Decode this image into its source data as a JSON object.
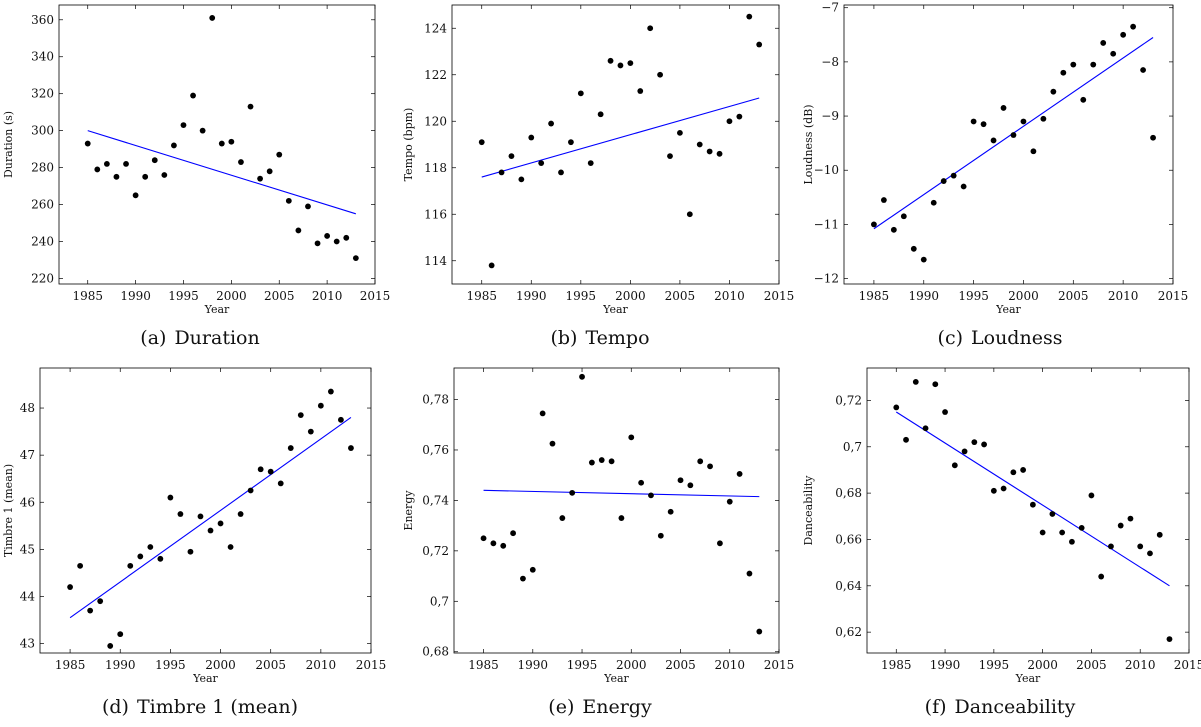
{
  "figure": {
    "panels": [
      {
        "letter": "(a)",
        "caption": "Duration"
      },
      {
        "letter": "(b)",
        "caption": "Tempo"
      },
      {
        "letter": "(c)",
        "caption": "Loudness"
      },
      {
        "letter": "(d)",
        "caption": "Timbre 1 (mean)"
      },
      {
        "letter": "(e)",
        "caption": "Energy"
      },
      {
        "letter": "(f)",
        "caption": "Danceability"
      }
    ]
  },
  "colors": {
    "points": "#000000",
    "trend": "#0000ff",
    "axes": "#000000"
  },
  "chart_data": [
    {
      "type": "scatter",
      "title": "",
      "xlabel": "Year",
      "ylabel": "Duration (s)",
      "xlim": [
        1982,
        2015
      ],
      "ylim": [
        217,
        368
      ],
      "xticks": [
        1985,
        1990,
        1995,
        2000,
        2005,
        2010,
        2015
      ],
      "yticks": [
        220,
        240,
        260,
        280,
        300,
        320,
        340,
        360
      ],
      "ytick_labels": [
        "220",
        "240",
        "260",
        "280",
        "300",
        "320",
        "340",
        "360"
      ],
      "grid": false,
      "x": [
        1985,
        1986,
        1987,
        1988,
        1989,
        1990,
        1991,
        1992,
        1993,
        1994,
        1995,
        1996,
        1997,
        1998,
        1999,
        2000,
        2001,
        2002,
        2003,
        2004,
        2005,
        2006,
        2007,
        2008,
        2009,
        2010,
        2011,
        2012,
        2013
      ],
      "y": [
        293,
        279,
        282,
        275,
        282,
        265,
        275,
        284,
        276,
        292,
        303,
        319,
        300,
        361,
        293,
        294,
        283,
        313,
        274,
        278,
        287,
        262,
        246,
        259,
        239,
        243,
        240,
        242,
        231
      ],
      "trendline": {
        "x": [
          1985,
          2013
        ],
        "y": [
          300,
          255
        ]
      }
    },
    {
      "type": "scatter",
      "title": "",
      "xlabel": "Year",
      "ylabel": "Tempo (bpm)",
      "xlim": [
        1982,
        2015
      ],
      "ylim": [
        113,
        125
      ],
      "xticks": [
        1985,
        1990,
        1995,
        2000,
        2005,
        2010,
        2015
      ],
      "yticks": [
        114,
        116,
        118,
        120,
        122,
        124
      ],
      "ytick_labels": [
        "114",
        "116",
        "118",
        "120",
        "122",
        "124"
      ],
      "grid": false,
      "x": [
        1985,
        1986,
        1987,
        1988,
        1989,
        1990,
        1991,
        1992,
        1993,
        1994,
        1995,
        1996,
        1997,
        1998,
        1999,
        2000,
        2001,
        2002,
        2003,
        2004,
        2005,
        2006,
        2007,
        2008,
        2009,
        2010,
        2011,
        2012,
        2013
      ],
      "y": [
        119.1,
        113.8,
        117.8,
        118.5,
        117.5,
        119.3,
        118.2,
        119.9,
        117.8,
        119.1,
        121.2,
        118.2,
        120.3,
        122.6,
        122.4,
        122.5,
        121.3,
        124.0,
        122.0,
        118.5,
        119.5,
        116.0,
        119.0,
        118.7,
        118.6,
        120.0,
        120.2,
        124.5,
        123.3
      ],
      "trendline": {
        "x": [
          1985,
          2013
        ],
        "y": [
          117.6,
          121.0
        ]
      }
    },
    {
      "type": "scatter",
      "title": "",
      "xlabel": "Year",
      "ylabel": "Loudness (dB)",
      "xlim": [
        1982,
        2015
      ],
      "ylim": [
        -12.1,
        -6.95
      ],
      "xticks": [
        1985,
        1990,
        1995,
        2000,
        2005,
        2010,
        2015
      ],
      "yticks": [
        -12,
        -11,
        -10,
        -9,
        -8,
        -7
      ],
      "ytick_labels": [
        "−12",
        "−11",
        "−10",
        "−9",
        "−8",
        "−7"
      ],
      "grid": false,
      "x": [
        1985,
        1986,
        1987,
        1988,
        1989,
        1990,
        1991,
        1992,
        1993,
        1994,
        1995,
        1996,
        1997,
        1998,
        1999,
        2000,
        2001,
        2002,
        2003,
        2004,
        2005,
        2006,
        2007,
        2008,
        2009,
        2010,
        2011,
        2012,
        2013
      ],
      "y": [
        -11.0,
        -10.55,
        -11.1,
        -10.85,
        -11.45,
        -11.65,
        -10.6,
        -10.2,
        -10.1,
        -10.3,
        -9.1,
        -9.15,
        -9.45,
        -8.85,
        -9.35,
        -9.1,
        -9.65,
        -9.05,
        -8.55,
        -8.2,
        -8.05,
        -8.7,
        -8.05,
        -7.65,
        -7.85,
        -7.5,
        -7.35,
        -8.15,
        -9.4
      ],
      "trendline": {
        "x": [
          1985,
          2013
        ],
        "y": [
          -11.08,
          -7.55
        ]
      }
    },
    {
      "type": "scatter",
      "title": "",
      "xlabel": "Year",
      "ylabel": "Timbre 1 (mean)",
      "xlim": [
        1982,
        2015
      ],
      "ylim": [
        42.8,
        48.85
      ],
      "xticks": [
        1985,
        1990,
        1995,
        2000,
        2005,
        2010,
        2015
      ],
      "yticks": [
        43,
        44,
        45,
        46,
        47,
        48
      ],
      "ytick_labels": [
        "43",
        "44",
        "45",
        "46",
        "47",
        "48"
      ],
      "grid": false,
      "x": [
        1985,
        1986,
        1987,
        1988,
        1989,
        1990,
        1991,
        1992,
        1993,
        1994,
        1995,
        1996,
        1997,
        1998,
        1999,
        2000,
        2001,
        2002,
        2003,
        2004,
        2005,
        2006,
        2007,
        2008,
        2009,
        2010,
        2011,
        2012,
        2013
      ],
      "y": [
        44.2,
        44.65,
        43.7,
        43.9,
        42.95,
        43.2,
        44.65,
        44.85,
        45.05,
        44.8,
        46.1,
        45.75,
        44.95,
        45.7,
        45.4,
        45.55,
        45.05,
        45.75,
        46.25,
        46.7,
        46.65,
        46.4,
        47.15,
        47.85,
        47.5,
        48.05,
        48.35,
        47.75,
        47.15
      ],
      "trendline": {
        "x": [
          1985,
          2013
        ],
        "y": [
          43.55,
          47.8
        ]
      }
    },
    {
      "type": "scatter",
      "title": "",
      "xlabel": "Year",
      "ylabel": "Energy",
      "xlim": [
        1982,
        2015
      ],
      "ylim": [
        0.6795,
        0.7925
      ],
      "xticks": [
        1985,
        1990,
        1995,
        2000,
        2005,
        2010,
        2015
      ],
      "yticks": [
        0.68,
        0.7,
        0.72,
        0.74,
        0.76,
        0.78
      ],
      "ytick_labels": [
        "0,68",
        "0,7",
        "0,72",
        "0,74",
        "0,76",
        "0,78"
      ],
      "grid": false,
      "x": [
        1985,
        1986,
        1987,
        1988,
        1989,
        1990,
        1991,
        1992,
        1993,
        1994,
        1995,
        1996,
        1997,
        1998,
        1999,
        2000,
        2001,
        2002,
        2003,
        2004,
        2005,
        2006,
        2007,
        2008,
        2009,
        2010,
        2011,
        2012,
        2013
      ],
      "y": [
        0.725,
        0.723,
        0.722,
        0.727,
        0.709,
        0.7125,
        0.7745,
        0.7625,
        0.733,
        0.743,
        0.789,
        0.755,
        0.756,
        0.7555,
        0.733,
        0.765,
        0.747,
        0.742,
        0.726,
        0.7355,
        0.748,
        0.746,
        0.7555,
        0.7535,
        0.723,
        0.7395,
        0.7505,
        0.711,
        0.688
      ],
      "trendline": {
        "x": [
          1985,
          2013
        ],
        "y": [
          0.744,
          0.7415
        ]
      }
    },
    {
      "type": "scatter",
      "title": "",
      "xlabel": "Year",
      "ylabel": "Danceability",
      "xlim": [
        1982,
        2015
      ],
      "ylim": [
        0.611,
        0.734
      ],
      "xticks": [
        1985,
        1990,
        1995,
        2000,
        2005,
        2010,
        2015
      ],
      "yticks": [
        0.62,
        0.64,
        0.66,
        0.68,
        0.7,
        0.72
      ],
      "ytick_labels": [
        "0,62",
        "0,64",
        "0,66",
        "0,68",
        "0,7",
        "0,72"
      ],
      "grid": false,
      "x": [
        1985,
        1986,
        1987,
        1988,
        1989,
        1990,
        1991,
        1992,
        1993,
        1994,
        1995,
        1996,
        1997,
        1998,
        1999,
        2000,
        2001,
        2002,
        2003,
        2004,
        2005,
        2006,
        2007,
        2008,
        2009,
        2010,
        2011,
        2012,
        2013
      ],
      "y": [
        0.717,
        0.703,
        0.728,
        0.708,
        0.727,
        0.715,
        0.692,
        0.698,
        0.702,
        0.701,
        0.681,
        0.682,
        0.689,
        0.69,
        0.675,
        0.663,
        0.671,
        0.663,
        0.659,
        0.665,
        0.679,
        0.644,
        0.657,
        0.666,
        0.669,
        0.657,
        0.654,
        0.662,
        0.617
      ],
      "trendline": {
        "x": [
          1985,
          2013
        ],
        "y": [
          0.715,
          0.64
        ]
      }
    }
  ]
}
